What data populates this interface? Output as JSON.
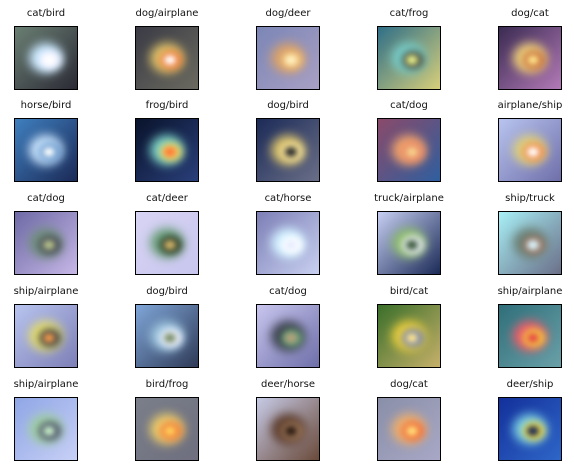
{
  "figure": {
    "rows": [
      [
        {
          "label": "cat/bird",
          "bg": [
            "#6a7f73",
            "#2b2a35"
          ],
          "heat": [
            "#c9e8ff",
            "#f2f2ff",
            "#ffffff"
          ]
        },
        {
          "label": "dog/airplane",
          "bg": [
            "#3a3b45",
            "#6b6a60"
          ],
          "heat": [
            "#e0c46a",
            "#f07a3a",
            "#ffffff"
          ]
        },
        {
          "label": "dog/deer",
          "bg": [
            "#7b86b6",
            "#a9a0c4"
          ],
          "heat": [
            "#d8a06a",
            "#f0c07a",
            "#fff1c2"
          ]
        },
        {
          "label": "cat/frog",
          "bg": [
            "#2f6f88",
            "#d7cf7a"
          ],
          "heat": [
            "#77d2d0",
            "#4c4a3a",
            "#e7ef8a"
          ]
        },
        {
          "label": "dog/cat",
          "bg": [
            "#3a2b52",
            "#b37ab7"
          ],
          "heat": [
            "#f0d27a",
            "#c46a3a",
            "#ffe48a"
          ]
        }
      ],
      [
        {
          "label": "horse/bird",
          "bg": [
            "#3f7fbf",
            "#1b2a57"
          ],
          "heat": [
            "#cfe8ff",
            "#5d91c8",
            "#ffffff"
          ]
        },
        {
          "label": "frog/bird",
          "bg": [
            "#09132b",
            "#2a3f7a"
          ],
          "heat": [
            "#7ad3c8",
            "#f0d05a",
            "#ff7a3a"
          ]
        },
        {
          "label": "dog/bird",
          "bg": [
            "#1b2a57",
            "#6a6f88"
          ],
          "heat": [
            "#d8c06a",
            "#f4e3a0",
            "#2b2a2a"
          ]
        },
        {
          "label": "cat/dog",
          "bg": [
            "#8a4a6a",
            "#2f5f9f"
          ],
          "heat": [
            "#f2a36a",
            "#e88a6a",
            "#f6d28a"
          ]
        },
        {
          "label": "airplane/ship",
          "bg": [
            "#b8c4ef",
            "#6f6faa"
          ],
          "heat": [
            "#e0d27a",
            "#f08a4a",
            "#ffffff"
          ]
        }
      ],
      [
        {
          "label": "cat/dog",
          "bg": [
            "#6e6aa6",
            "#c6b7e6"
          ],
          "heat": [
            "#6f8f7a",
            "#4a4a5a",
            "#b6c28a"
          ]
        },
        {
          "label": "cat/deer",
          "bg": [
            "#d8d4f4",
            "#c8c6ee"
          ],
          "heat": [
            "#6aa07a",
            "#2f3a2a",
            "#d0b56a"
          ]
        },
        {
          "label": "cat/horse",
          "bg": [
            "#7d7fb6",
            "#c8d0f0"
          ],
          "heat": [
            "#d0f0ff",
            "#ffffff",
            "#e7ecff"
          ]
        },
        {
          "label": "truck/airplane",
          "bg": [
            "#c6cff2",
            "#1b2a57"
          ],
          "heat": [
            "#8fbf6a",
            "#f0f0ff",
            "#3a5a3a"
          ]
        },
        {
          "label": "ship/truck",
          "bg": [
            "#a8f0f6",
            "#6a6f88"
          ],
          "heat": [
            "#6a7f73",
            "#a07a6a",
            "#d8f6ff"
          ]
        }
      ],
      [
        {
          "label": "ship/airplane",
          "bg": [
            "#b8c4ef",
            "#7d7fb6"
          ],
          "heat": [
            "#e8e06a",
            "#3a3f4a",
            "#f09a4a"
          ]
        },
        {
          "label": "dog/bird",
          "bg": [
            "#7fa6d8",
            "#2f3a57"
          ],
          "heat": [
            "#9fc7e0",
            "#f4f4ff",
            "#7a8f6a"
          ]
        },
        {
          "label": "cat/dog",
          "bg": [
            "#c8c6ee",
            "#6f6faa"
          ],
          "heat": [
            "#3a3f4a",
            "#6aa07a",
            "#b6a07a"
          ]
        },
        {
          "label": "bird/cat",
          "bg": [
            "#3a6f2a",
            "#c6b06a"
          ],
          "heat": [
            "#f0d23a",
            "#6f7fb6",
            "#ffe58a"
          ]
        },
        {
          "label": "ship/airplane",
          "bg": [
            "#2f6f7a",
            "#6aa0a8"
          ],
          "heat": [
            "#f05a6a",
            "#f0d23a",
            "#e84a4a"
          ]
        }
      ],
      [
        {
          "label": "ship/airplane",
          "bg": [
            "#8fa6e6",
            "#c8d0f6"
          ],
          "heat": [
            "#9fd0a0",
            "#4a4a6a",
            "#c6f0c6"
          ]
        },
        {
          "label": "bird/frog",
          "bg": [
            "#7a7f8a",
            "#6f6f7f"
          ],
          "heat": [
            "#f0d06a",
            "#f07a3a",
            "#ffd05a"
          ]
        },
        {
          "label": "deer/horse",
          "bg": [
            "#c6cae6",
            "#6a4a3a"
          ],
          "heat": [
            "#5a3a2a",
            "#a07a5a",
            "#2a1a12"
          ]
        },
        {
          "label": "dog/cat",
          "bg": [
            "#8a8fa8",
            "#a8a8c6"
          ],
          "heat": [
            "#f0b06a",
            "#f06a3a",
            "#ffe07a"
          ]
        },
        {
          "label": "deer/ship",
          "bg": [
            "#13309a",
            "#2f66c8"
          ],
          "heat": [
            "#7ad0e6",
            "#f0d23a",
            "#1b2a57"
          ]
        }
      ]
    ]
  }
}
